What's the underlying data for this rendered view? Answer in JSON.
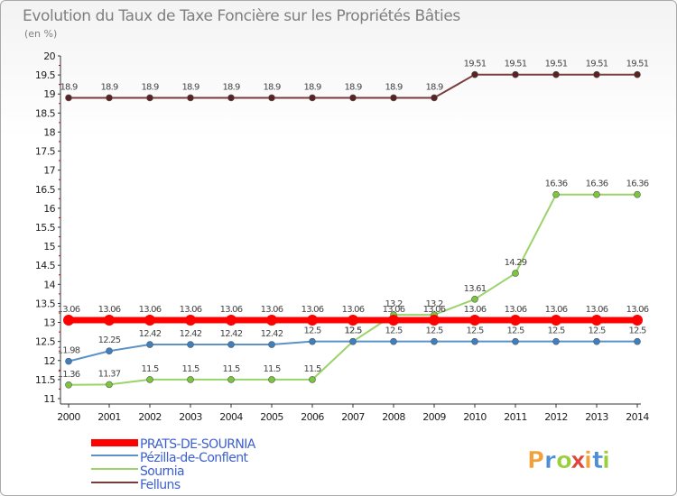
{
  "chart_data": {
    "type": "line",
    "title": "Evolution du Taux de Taxe Foncière sur les Propriétés Bâties",
    "ylabel": "(en %)",
    "xlabel": "",
    "ylim": [
      11,
      20
    ],
    "yticks": [
      "11",
      "11.5",
      "12",
      "12.5",
      "13",
      "13.5",
      "14",
      "14.5",
      "15",
      "15.5",
      "16",
      "16.5",
      "17",
      "17.5",
      "18",
      "18.5",
      "19",
      "19.5",
      "20"
    ],
    "x": [
      "2000",
      "2001",
      "2002",
      "2003",
      "2004",
      "2005",
      "2006",
      "2007",
      "2008",
      "2009",
      "2010",
      "2011",
      "2012",
      "2013",
      "2014"
    ],
    "series": [
      {
        "name": "Felluns",
        "color": "#7a3b3b",
        "marker": "#5a2323",
        "width": 2,
        "values": [
          18.9,
          18.9,
          18.9,
          18.9,
          18.9,
          18.9,
          18.9,
          18.9,
          18.9,
          18.9,
          19.51,
          19.51,
          19.51,
          19.51,
          19.51
        ],
        "labels": [
          "18.9",
          "18.9",
          "18.9",
          "18.9",
          "18.9",
          "18.9",
          "18.9",
          "18.9",
          "18.9",
          "18.9",
          "19.51",
          "19.51",
          "19.51",
          "19.51",
          "19.51"
        ]
      },
      {
        "name": "Sournia",
        "color": "#9ad36a",
        "marker": "#7cc63c",
        "width": 2,
        "values": [
          11.36,
          11.37,
          11.5,
          11.5,
          11.5,
          11.5,
          11.5,
          12.5,
          13.2,
          13.2,
          13.61,
          14.29,
          16.36,
          16.36,
          16.36
        ],
        "labels": [
          "11.36",
          "11.37",
          "11.5",
          "11.5",
          "11.5",
          "11.5",
          "11.5",
          "12.5",
          "13.2",
          "13.2",
          "13.61",
          "14.29",
          "16.36",
          "16.36",
          "16.36"
        ]
      },
      {
        "name": "Pézilla-de-Conflent",
        "color": "#5b93c8",
        "marker": "#3d7fc0",
        "width": 2,
        "values": [
          11.98,
          12.25,
          12.42,
          12.42,
          12.42,
          12.42,
          12.5,
          12.5,
          12.5,
          12.5,
          12.5,
          12.5,
          12.5,
          12.5,
          12.5
        ],
        "labels": [
          "11.98",
          "12.25",
          "12.42",
          "12.42",
          "12.42",
          "12.42",
          "12.5",
          "12.5",
          "12.5",
          "12.5",
          "12.5",
          "12.5",
          "12.5",
          "12.5",
          "12.5"
        ]
      },
      {
        "name": "PRATS-DE-SOURNIA",
        "color": "#ff0000",
        "marker": "#ff0000",
        "width": 7,
        "values": [
          13.06,
          13.06,
          13.06,
          13.06,
          13.06,
          13.06,
          13.06,
          13.06,
          13.06,
          13.06,
          13.06,
          13.06,
          13.06,
          13.06,
          13.06
        ],
        "labels": [
          "13.06",
          "13.06",
          "13.06",
          "13.06",
          "13.06",
          "13.06",
          "13.06",
          "13.06",
          "13.06",
          "13.06",
          "13.06",
          "13.06",
          "13.06",
          "13.06",
          "13.06"
        ]
      }
    ],
    "legend": [
      {
        "name": "PRATS-DE-SOURNIA",
        "color": "#ff0000",
        "text_color": "#3c5fd0"
      },
      {
        "name": "Pézilla-de-Conflent",
        "color": "#5b93c8",
        "text_color": "#3c5fd0"
      },
      {
        "name": "Sournia",
        "color": "#9ad36a",
        "text_color": "#3c5fd0"
      },
      {
        "name": "Felluns",
        "color": "#7a3b3b",
        "text_color": "#3c5fd0"
      }
    ],
    "grid": false,
    "legend_position": "bottom-left"
  },
  "brand": {
    "letters": [
      "P",
      "r",
      "o",
      "x",
      "i",
      "t",
      "i"
    ],
    "colors": [
      "#f2a03a",
      "#4c8fd6",
      "#9bcf3a",
      "#e0443a",
      "#f2a03a",
      "#4c8fd6",
      "#9bcf3a"
    ]
  }
}
